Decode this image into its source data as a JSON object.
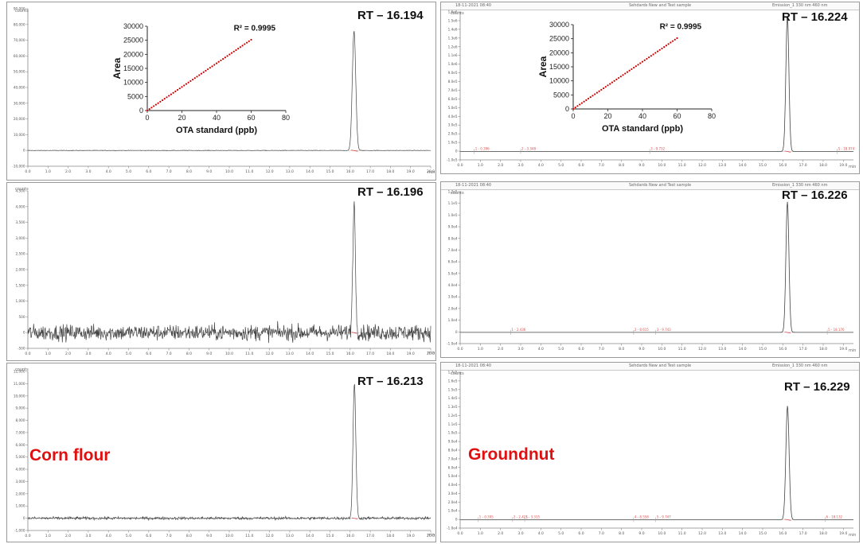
{
  "chart_data": [
    {
      "type": "line",
      "panel": "left-1",
      "y_unit": "counts",
      "x_unit": "min",
      "x_ticks": [
        "0.0",
        "1.0",
        "2.0",
        "3.0",
        "4.0",
        "5.0",
        "6.0",
        "7.0",
        "8.0",
        "9.0",
        "10.0",
        "11.0",
        "12.0",
        "13.0",
        "14.0",
        "15.0",
        "16.0",
        "17.0",
        "18.0",
        "19.0",
        "20.0"
      ],
      "y_ticks": [
        "-10,000",
        "0",
        "10,000",
        "20,000",
        "30,000",
        "40,000",
        "50,000",
        "60,000",
        "70,000",
        "80,000",
        "90,000"
      ],
      "xlim": [
        0,
        20
      ],
      "ylim": [
        -10000,
        90000
      ],
      "peak": {
        "rt": 16.194,
        "height": 76000,
        "width": 0.17
      },
      "noise": 120,
      "baseline": 0,
      "annotation": "RT – 16.194"
    },
    {
      "type": "line",
      "panel": "left-2",
      "y_unit": "counts",
      "x_unit": "min",
      "x_ticks": [
        "0.0",
        "1.0",
        "2.0",
        "3.0",
        "4.0",
        "5.0",
        "6.0",
        "7.0",
        "8.0",
        "9.0",
        "10.0",
        "11.0",
        "12.0",
        "13.0",
        "14.0",
        "15.0",
        "16.0",
        "17.0",
        "18.0",
        "19.0",
        "20.0"
      ],
      "y_ticks": [
        "-500",
        "0",
        "500",
        "1,000",
        "1,500",
        "2,000",
        "2,500",
        "3,000",
        "3,500",
        "4,000",
        "4,500"
      ],
      "xlim": [
        0,
        20
      ],
      "ylim": [
        -500,
        4500
      ],
      "peak": {
        "rt": 16.196,
        "height": 4100,
        "width": 0.13
      },
      "noise": 150,
      "baseline": 0,
      "annotation": "RT – 16.196"
    },
    {
      "type": "line",
      "panel": "left-3",
      "y_unit": "counts",
      "x_unit": "min",
      "x_ticks": [
        "0.0",
        "1.0",
        "2.0",
        "3.0",
        "4.0",
        "5.0",
        "6.0",
        "7.0",
        "8.0",
        "9.0",
        "10.0",
        "11.0",
        "12.0",
        "13.0",
        "14.0",
        "15.0",
        "16.0",
        "17.0",
        "18.0",
        "19.0",
        "20.0"
      ],
      "y_ticks": [
        "-1,000",
        "0",
        "1,000",
        "2,000",
        "3,000",
        "4,000",
        "5,000",
        "6,000",
        "7,000",
        "8,000",
        "9,000",
        "10,000",
        "11,000",
        "12,000"
      ],
      "xlim": [
        0,
        20
      ],
      "ylim": [
        -1000,
        12000
      ],
      "peak": {
        "rt": 16.213,
        "height": 11000,
        "width": 0.14
      },
      "noise": 90,
      "baseline": 0,
      "annotation": "RT – 16.213",
      "sample_label": "Corn flour"
    },
    {
      "type": "line",
      "panel": "right-1",
      "y_unit": "counts",
      "x_unit": "min",
      "x_ticks": [
        "0.0",
        "1.0",
        "2.0",
        "3.0",
        "4.0",
        "5.0",
        "6.0",
        "7.0",
        "8.0",
        "9.0",
        "10.0",
        "11.0",
        "12.0",
        "13.0",
        "14.0",
        "15.0",
        "16.0",
        "17.0",
        "18.0",
        "19.0"
      ],
      "y_ticks": [
        "-1.0e5",
        "0",
        "1.0e5",
        "2.0e5",
        "3.0e5",
        "4.0e5",
        "5.0e5",
        "6.0e5",
        "7.0e5",
        "8.0e5",
        "9.0e5",
        "1.0e6",
        "1.1e6",
        "1.2e6",
        "1.3e6",
        "1.4e6",
        "1.5e6",
        "1.6e6"
      ],
      "xlim": [
        0,
        19.5
      ],
      "ylim": [
        -100000,
        1650000
      ],
      "peak": {
        "rt": 16.224,
        "height": 1600000,
        "width": 0.15
      },
      "noise": 0,
      "baseline": 0,
      "annotation": "RT – 16.224"
    },
    {
      "type": "line",
      "panel": "right-2",
      "y_unit": "counts",
      "x_unit": "min",
      "x_ticks": [
        "0.0",
        "1.0",
        "2.0",
        "3.0",
        "4.0",
        "5.0",
        "6.0",
        "7.0",
        "8.0",
        "9.0",
        "10.0",
        "11.0",
        "12.0",
        "13.0",
        "14.0",
        "15.0",
        "16.0",
        "17.0",
        "18.0",
        "19.0"
      ],
      "y_ticks": [
        "-1.0e4",
        "0",
        "1.0e4",
        "2.0e4",
        "3.0e4",
        "4.0e4",
        "5.0e4",
        "6.0e4",
        "7.0e4",
        "8.0e4",
        "9.0e4",
        "1.0e5",
        "1.1e5",
        "1.2e5"
      ],
      "xlim": [
        0,
        19.5
      ],
      "ylim": [
        -10000,
        125000
      ],
      "peak": {
        "rt": 16.226,
        "height": 116000,
        "width": 0.15
      },
      "noise": 0,
      "baseline": 0,
      "annotation": "RT – 16.226"
    },
    {
      "type": "line",
      "panel": "right-3",
      "y_unit": "counts",
      "x_unit": "min",
      "x_ticks": [
        "0.0",
        "1.0",
        "2.0",
        "3.0",
        "4.0",
        "5.0",
        "6.0",
        "7.0",
        "8.0",
        "9.0",
        "10.0",
        "11.0",
        "12.0",
        "13.0",
        "14.0",
        "15.0",
        "16.0",
        "17.0",
        "18.0",
        "19.0"
      ],
      "y_ticks": [
        "-1.0e4",
        "0",
        "1.0e4",
        "2.0e4",
        "3.0e4",
        "4.0e4",
        "5.0e4",
        "6.0e4",
        "7.0e4",
        "8.0e4",
        "9.0e4",
        "1.0e5",
        "1.1e5",
        "1.2e5",
        "1.3e5",
        "1.4e5",
        "1.5e5",
        "1.6e5",
        "1.7e5"
      ],
      "xlim": [
        0,
        19.5
      ],
      "ylim": [
        -10000,
        175000
      ],
      "peak": {
        "rt": 16.229,
        "height": 135000,
        "width": 0.16
      },
      "noise": 0,
      "baseline": 0,
      "annotation": "RT – 16.229",
      "sample_label": "Groundnut"
    },
    {
      "type": "scatter",
      "panel": "calibration-inset-left",
      "xlabel": "OTA standard (ppb)",
      "ylabel": "Area",
      "xlim": [
        0,
        80
      ],
      "ylim": [
        0,
        30000
      ],
      "x_ticks": [
        "0",
        "20",
        "40",
        "60",
        "80"
      ],
      "y_ticks": [
        "0",
        "5000",
        "10000",
        "15000",
        "20000",
        "25000",
        "30000"
      ],
      "x": [
        0,
        5,
        10,
        15,
        20,
        25,
        30,
        35,
        40,
        45,
        50,
        55,
        60
      ],
      "y": [
        0,
        2100,
        4200,
        6300,
        8400,
        10500,
        12600,
        14700,
        16800,
        18900,
        21000,
        23100,
        25200
      ],
      "annotation": "R² = 0.9995"
    },
    {
      "type": "scatter",
      "panel": "calibration-inset-right",
      "xlabel": "OTA standard (ppb)",
      "ylabel": "Area",
      "xlim": [
        0,
        80
      ],
      "ylim": [
        0,
        30000
      ],
      "x_ticks": [
        "0",
        "20",
        "40",
        "60",
        "80"
      ],
      "y_ticks": [
        "0",
        "5000",
        "10000",
        "15000",
        "20000",
        "25000",
        "30000"
      ],
      "x": [
        0,
        5,
        10,
        15,
        20,
        25,
        30,
        35,
        40,
        45,
        50,
        55,
        60
      ],
      "y": [
        0,
        2100,
        4200,
        6300,
        8400,
        10500,
        12600,
        14700,
        16800,
        18900,
        21000,
        23100,
        25200
      ],
      "annotation": "R² = 0.9995"
    }
  ],
  "right_panel_headers": [
    {
      "left": "18-11-2021 08:40",
      "center": "Sehdards New and Test sample",
      "right": "Emission_1 330 nm 460 nm"
    },
    {
      "left": "18-11-2021 08:40",
      "center": "Sehdards New and Test sample",
      "right": "Emission_1 330 nm 460 nm"
    },
    {
      "left": "18-11-2021 08:40",
      "center": "Sehdards New and Test sample",
      "right": "Emission_1 330 nm 460 nm"
    }
  ],
  "right_small_peaks": [
    [
      {
        "rt": 0.7,
        "label": "1 - 0.396"
      },
      {
        "rt": 3.0,
        "label": "2 - 3.348"
      },
      {
        "rt": 9.4,
        "label": "3 - 9.732"
      },
      {
        "rt": 18.7,
        "label": "5 - 18.974"
      }
    ],
    [
      {
        "rt": 2.5,
        "label": "1 - 2.436"
      },
      {
        "rt": 8.6,
        "label": "2 - 8.615"
      },
      {
        "rt": 9.7,
        "label": "3 - 9.743"
      },
      {
        "rt": 18.2,
        "label": "5 - 18.176"
      }
    ],
    [
      {
        "rt": 0.9,
        "label": "1 - 0.395"
      },
      {
        "rt": 2.6,
        "label": "2 - 2.421"
      },
      {
        "rt": 3.2,
        "label": "3 - 3.315"
      },
      {
        "rt": 8.6,
        "label": "4 - 8.558"
      },
      {
        "rt": 9.7,
        "label": "5 - 9.747"
      },
      {
        "rt": 18.1,
        "label": "6 - 18.132"
      }
    ]
  ],
  "colors": {
    "trace": "#444444",
    "baseline_mark": "#e05050",
    "sample_label": "#e01010",
    "grid_axis": "#888888",
    "calibration_points": "#cc0000"
  }
}
